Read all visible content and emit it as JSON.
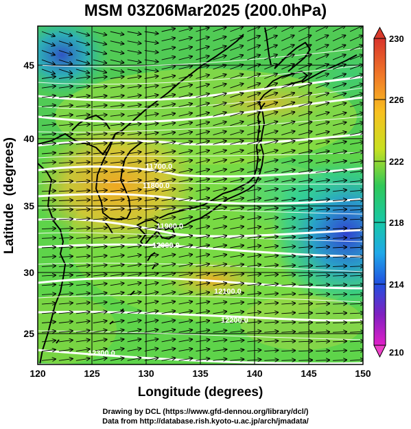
{
  "title": "MSM 03Z06Mar2025 (200.0hPa)",
  "axes": {
    "xlabel": "Longitude (degrees)",
    "ylabel": "Latitude  (degrees)",
    "xticks": [
      "120",
      "125",
      "130",
      "135",
      "140",
      "145",
      "150"
    ],
    "yticks": [
      "25",
      "30",
      "35",
      "40",
      "45"
    ],
    "xrange": [
      120,
      150
    ],
    "yrange": [
      22.4,
      47.6
    ]
  },
  "colorbar": {
    "ticks": [
      "230",
      "226",
      "222",
      "218",
      "214",
      "210"
    ],
    "range": [
      210,
      230
    ]
  },
  "contour_labels": [
    "12300.0",
    "12200.0",
    "12100.0",
    "12000.0",
    "11900.0",
    "11800.0",
    "11700.0"
  ],
  "footer": {
    "line1": "Drawing by DCL (https://www.gfd-dennou.org/library/dcl/)",
    "line2": "Data from http://database.rish.kyoto-u.ac.jp/arch/jmadata/"
  },
  "chart_data": {
    "type": "heatmap",
    "title": "MSM 03Z06Mar2025 (200.0hPa)",
    "xlabel": "Longitude (degrees)",
    "ylabel": "Latitude  (degrees)",
    "xlim": [
      120,
      150
    ],
    "ylim": [
      22.4,
      47.6
    ],
    "colorbar_range": [
      210,
      230
    ],
    "colorbar_ticks": [
      210,
      214,
      218,
      222,
      226,
      230
    ],
    "contours": [
      {
        "label": "12300.0",
        "lat": 23.6
      },
      {
        "label": "12200.0",
        "lat": 26.6
      },
      {
        "label": "12100.0",
        "lat": 29.2
      },
      {
        "label": "12000.0",
        "lat": 31.6
      },
      {
        "label": "11900.0",
        "lat": 33.4
      },
      {
        "label": "11800.0",
        "lat": 35.6
      },
      {
        "label": "11700.0",
        "lat": 37.8
      }
    ],
    "grid": true
  }
}
